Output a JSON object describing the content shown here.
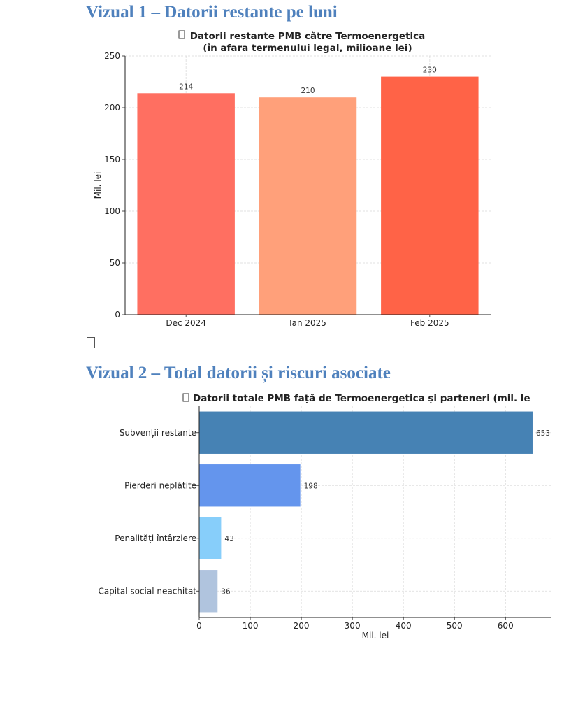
{
  "headings": {
    "visual1": "Vizual 1 – Datorii restante pe luni",
    "visual2": "Vizual 2 – Total datorii și riscuri asociate"
  },
  "chart_data": [
    {
      "type": "bar",
      "title_line1": "Datorii restante PMB către Termoenergetica",
      "title_line2": "(în afara termenului legal, milioane lei)",
      "categories": [
        "Dec 2024",
        "Ian 2025",
        "Feb 2025"
      ],
      "values": [
        214,
        210,
        230
      ],
      "colors": [
        "#ff6f61",
        "#ffa07a",
        "#ff6347"
      ],
      "xlabel": "",
      "ylabel": "Mil. lei",
      "ylim": [
        0,
        250
      ],
      "yticks": [
        0,
        50,
        100,
        150,
        200,
        250
      ],
      "grid": true,
      "data_labels": true
    },
    {
      "type": "bar",
      "orientation": "horizontal",
      "title": "Datorii totale PMB față de Termoenergetica și parteneri (mil. le",
      "categories": [
        "Subvenții restante",
        "Pierderi neplătite",
        "Penalități întârziere",
        "Capital social neachitat"
      ],
      "values": [
        653,
        198,
        43,
        36
      ],
      "colors": [
        "#4682b4",
        "#6495ed",
        "#87cefa",
        "#b0c4de"
      ],
      "xlabel": "Mil. lei",
      "ylabel": "",
      "xlim": [
        0,
        690
      ],
      "xticks": [
        0,
        100,
        200,
        300,
        400,
        500,
        600
      ],
      "grid": true,
      "data_labels": true
    }
  ]
}
